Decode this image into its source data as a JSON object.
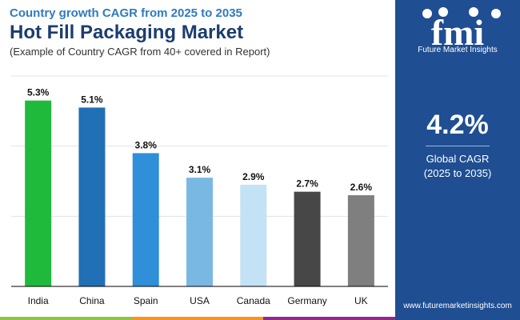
{
  "header": {
    "subtitle": "Country growth CAGR from 2025 to 2035",
    "title": "Hot Fill Packaging Market",
    "note": "(Example of Country CAGR from 40+ covered in Report)"
  },
  "chart_data": {
    "type": "bar",
    "title": "Hot Fill Packaging Market",
    "subtitle": "Country growth CAGR from 2025 to 2035",
    "categories": [
      "India",
      "China",
      "Spain",
      "USA",
      "Canada",
      "Germany",
      "UK"
    ],
    "values": [
      5.3,
      5.1,
      3.8,
      3.1,
      2.9,
      2.7,
      2.6
    ],
    "value_labels": [
      "5.3%",
      "5.1%",
      "3.8%",
      "3.1%",
      "2.9%",
      "2.7%",
      "2.6%"
    ],
    "colors": [
      "#1fba3c",
      "#2170b5",
      "#2f8fd8",
      "#7ab8e4",
      "#c4e2f5",
      "#474747",
      "#7f7f7f"
    ],
    "ylim": [
      0,
      6
    ],
    "grid": true,
    "xlabel": "",
    "ylabel": ""
  },
  "sidebar": {
    "logo_text": "fmi",
    "logo_caption": "Future Market Insights",
    "global_value": "4.2%",
    "global_label_line1": "Global CAGR",
    "global_label_line2": "(2025 to 2035)",
    "website": "www.futuremarketinsights.com"
  },
  "colors": {
    "panel": "#1f4e92",
    "title": "#1c3d6e",
    "subtitle": "#2e7bbf",
    "strip": [
      "#8dc63f",
      "#f7941d",
      "#92278f"
    ]
  }
}
